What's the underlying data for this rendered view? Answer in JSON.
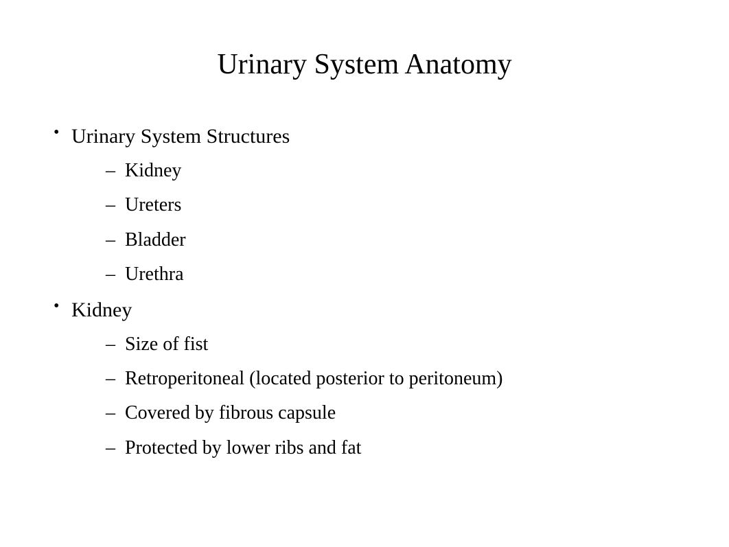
{
  "title": "Urinary System Anatomy",
  "bullets": [
    {
      "text": "Urinary System Structures",
      "children": [
        {
          "text": "Kidney"
        },
        {
          "text": "Ureters"
        },
        {
          "text": "Bladder"
        },
        {
          "text": "Urethra"
        }
      ]
    },
    {
      "text": "Kidney",
      "children": [
        {
          "text": "Size of fist"
        },
        {
          "text": "Retroperitoneal (located posterior to peritoneum)"
        },
        {
          "text": "Covered by fibrous capsule"
        },
        {
          "text": "Protected by lower ribs and fat"
        }
      ]
    }
  ],
  "style": {
    "background_color": "#ffffff",
    "text_color": "#000000",
    "font_family": "Times New Roman",
    "title_fontsize": 42,
    "level1_fontsize": 30,
    "level2_fontsize": 28,
    "level1_marker": "•",
    "level2_marker": "–"
  }
}
